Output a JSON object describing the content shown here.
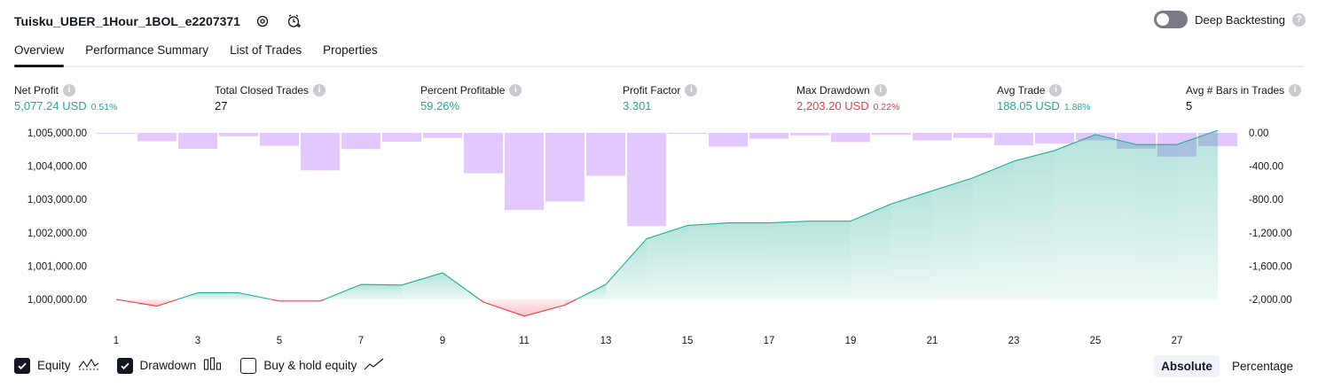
{
  "header": {
    "title": "Tuisku_UBER_1Hour_1BOL_e2207371",
    "deep_backtesting_label": "Deep Backtesting",
    "deep_backtesting_on": false
  },
  "tabs": [
    {
      "label": "Overview",
      "active": true
    },
    {
      "label": "Performance Summary",
      "active": false
    },
    {
      "label": "List of Trades",
      "active": false
    },
    {
      "label": "Properties",
      "active": false
    }
  ],
  "stats": {
    "net_profit": {
      "label": "Net Profit",
      "value": "5,077.24 USD",
      "pct": "0.51%"
    },
    "total_closed_trades": {
      "label": "Total Closed Trades",
      "value": "27"
    },
    "percent_profitable": {
      "label": "Percent Profitable",
      "value": "59.26%"
    },
    "profit_factor": {
      "label": "Profit Factor",
      "value": "3.301"
    },
    "max_drawdown": {
      "label": "Max Drawdown",
      "value": "2,203.20 USD",
      "pct": "0.22%"
    },
    "avg_trade": {
      "label": "Avg Trade",
      "value": "188.05 USD",
      "pct": "1.88%"
    },
    "avg_bars": {
      "label": "Avg # Bars in Trades",
      "value": "5"
    }
  },
  "colors": {
    "equity_up": "#22ab94",
    "equity_down": "#f23645",
    "drawdown_bar": "#ddbcfc",
    "text": "#131722"
  },
  "chart_data": {
    "type": "line",
    "x": [
      1,
      2,
      3,
      4,
      5,
      6,
      7,
      8,
      9,
      10,
      11,
      12,
      13,
      14,
      15,
      16,
      17,
      18,
      19,
      20,
      21,
      22,
      23,
      24,
      25,
      26,
      27,
      28
    ],
    "x_tick_labels": [
      "1",
      "3",
      "5",
      "7",
      "9",
      "11",
      "13",
      "15",
      "17",
      "19",
      "21",
      "23",
      "25",
      "27"
    ],
    "series": [
      {
        "name": "Equity",
        "axis": "left",
        "values": [
          1000000,
          999800,
          1000200,
          1000200,
          999950,
          999950,
          1000450,
          1000430,
          1000800,
          999920,
          999500,
          999830,
          1000450,
          1001820,
          1002220,
          1002300,
          1002300,
          1002350,
          1002350,
          1002870,
          1003260,
          1003650,
          1004150,
          1004470,
          1004950,
          1004650,
          1004650,
          1005077
        ]
      },
      {
        "name": "Drawdown",
        "axis": "right",
        "type": "bar",
        "values": [
          -10,
          -100,
          -190,
          -40,
          -155,
          -450,
          -195,
          -105,
          -60,
          -485,
          -925,
          -825,
          -515,
          -1120,
          -10,
          -165,
          -70,
          -30,
          -110,
          -25,
          -90,
          -60,
          -150,
          -130,
          -90,
          -190,
          -285,
          -160
        ]
      }
    ],
    "left_axis": {
      "ylim": [
        999400,
        1005000
      ],
      "ticks": [
        "1,005,000.00",
        "1,004,000.00",
        "1,003,000.00",
        "1,002,000.00",
        "1,001,000.00",
        "1,000,000.00"
      ]
    },
    "right_axis": {
      "ylim": [
        -2000,
        0
      ],
      "ticks": [
        "0.00",
        "-400.00",
        "-800.00",
        "-1,200.00",
        "-1,600.00",
        "-2,000.00"
      ]
    },
    "grid": false
  },
  "legend": {
    "equity": {
      "label": "Equity",
      "checked": true
    },
    "drawdown": {
      "label": "Drawdown",
      "checked": true
    },
    "buy_hold": {
      "label": "Buy & hold equity",
      "checked": false
    }
  },
  "view_mode": {
    "absolute": "Absolute",
    "percentage": "Percentage",
    "selected": "Absolute"
  }
}
